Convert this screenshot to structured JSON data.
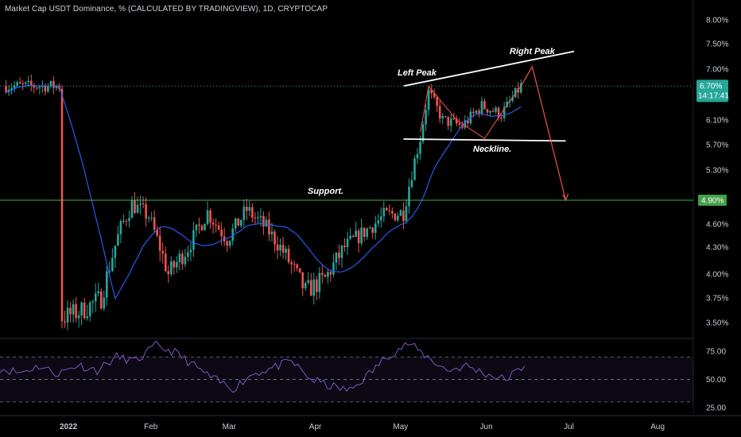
{
  "header": {
    "title": "Market Cap USDT Dominance, % (CALCULATED BY TRADINGVIEW), 1D, CRYPTOCAP"
  },
  "colors": {
    "background": "#000000",
    "up_candle": "#26a69a",
    "down_candle": "#ef5350",
    "ma_line": "#2962ff",
    "support_line": "#4caf50",
    "support_tag": "#43a047",
    "price_tag": "#26a69a",
    "projection_arrow": "#ef5350",
    "rsi_line": "#7e57c2",
    "trendline": "#ffffff"
  },
  "chart_data": [
    {
      "type": "candlestick",
      "title": "",
      "ylim": [
        3.35,
        8.2
      ],
      "y_ticks": [
        "8.00%",
        "7.50%",
        "7.00%",
        "6.10%",
        "5.70%",
        "5.30%",
        "4.60%",
        "4.30%",
        "4.00%",
        "3.75%",
        "3.50%"
      ],
      "x_ticks": [
        "2022",
        "Feb",
        "Mar",
        "Apr",
        "May",
        "Jun",
        "Jul",
        "Aug"
      ],
      "last_price": "6.70%",
      "countdown": "14:17:41",
      "support_level": 4.9,
      "support_label": "4.90%",
      "annotations": {
        "left_peak": "Left Peak",
        "right_peak": "Right Peak",
        "neckline": "Neckline.",
        "support": "Support."
      },
      "closes": [
        {
          "date": "2022-01-01",
          "close": 3.55
        },
        {
          "date": "2022-01-08",
          "close": 3.62
        },
        {
          "date": "2022-01-15",
          "close": 3.75
        },
        {
          "date": "2022-01-22",
          "close": 4.55
        },
        {
          "date": "2022-01-26",
          "close": 4.85
        },
        {
          "date": "2022-02-01",
          "close": 4.7
        },
        {
          "date": "2022-02-08",
          "close": 4.0
        },
        {
          "date": "2022-02-15",
          "close": 4.3
        },
        {
          "date": "2022-02-22",
          "close": 4.75
        },
        {
          "date": "2022-03-01",
          "close": 4.4
        },
        {
          "date": "2022-03-08",
          "close": 4.78
        },
        {
          "date": "2022-03-15",
          "close": 4.55
        },
        {
          "date": "2022-03-22",
          "close": 4.2
        },
        {
          "date": "2022-03-29",
          "close": 3.82
        },
        {
          "date": "2022-04-05",
          "close": 3.95
        },
        {
          "date": "2022-04-12",
          "close": 4.3
        },
        {
          "date": "2022-04-19",
          "close": 4.5
        },
        {
          "date": "2022-04-26",
          "close": 4.7
        },
        {
          "date": "2022-05-03",
          "close": 4.75
        },
        {
          "date": "2022-05-09",
          "close": 5.8
        },
        {
          "date": "2022-05-12",
          "close": 6.6
        },
        {
          "date": "2022-05-17",
          "close": 6.1
        },
        {
          "date": "2022-05-24",
          "close": 6.0
        },
        {
          "date": "2022-05-31",
          "close": 6.35
        },
        {
          "date": "2022-06-07",
          "close": 6.2
        },
        {
          "date": "2022-06-14",
          "close": 6.7
        }
      ],
      "projection_path": [
        {
          "date": "2022-06-14",
          "value": 6.7
        },
        {
          "date": "2022-06-18",
          "value": 7.05
        },
        {
          "date": "2022-06-30",
          "value": 4.9
        }
      ]
    },
    {
      "type": "line",
      "title": "",
      "ylim": [
        20,
        85
      ],
      "y_ticks": [
        "75.00",
        "50.00",
        "25.00"
      ],
      "band": [
        30,
        70
      ],
      "values": [
        60,
        56,
        62,
        55,
        63,
        58,
        70,
        66,
        80,
        74,
        62,
        50,
        42,
        55,
        60,
        66,
        50,
        44,
        40,
        55,
        72,
        82,
        70,
        58,
        62,
        55,
        50,
        62
      ]
    }
  ]
}
